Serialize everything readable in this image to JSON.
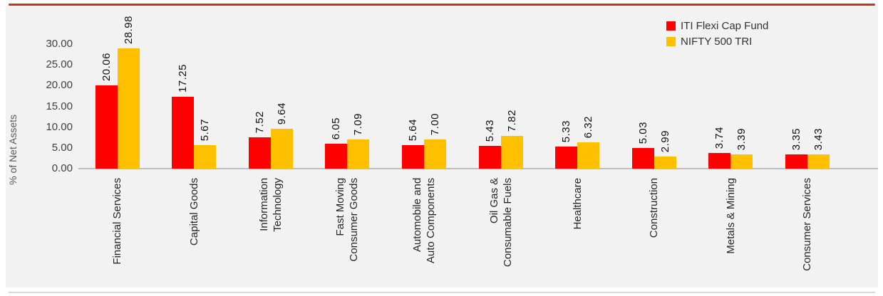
{
  "page": {
    "accent_line_color": "#C5351F",
    "panel_bg": "#F2F2F2",
    "axis_line_color": "#BFBFBF"
  },
  "legend": {
    "items": [
      {
        "label": "ITI Flexi Cap Fund",
        "color": "#FE0000"
      },
      {
        "label": "NIFTY 500 TRI",
        "color": "#FFC000"
      }
    ]
  },
  "chart_data": {
    "type": "bar",
    "title": "",
    "xlabel": "",
    "ylabel": "% of Net Assets",
    "ylim": [
      0,
      30
    ],
    "ytick_step": 5,
    "ytick_format": "two-decimals",
    "grid": false,
    "legend_position": "top-right",
    "value_labels": "rotated-90-above-bars",
    "category_labels": "rotated-90-below-axis",
    "categories": [
      "Financial Services",
      "Capital Goods",
      "Information\nTechnology",
      "Fast Moving\nConsumer Goods",
      "Automobile and\nAuto Components",
      "Oil Gas &\nConsumable Fuels",
      "Healthcare",
      "Construction",
      "Metals & Mining",
      "Consumer Services"
    ],
    "series": [
      {
        "name": "ITI Flexi Cap Fund",
        "color": "#FE0000",
        "values": [
          20.06,
          17.25,
          7.52,
          6.05,
          5.64,
          5.43,
          5.33,
          5.03,
          3.74,
          3.35
        ]
      },
      {
        "name": "NIFTY 500 TRI",
        "color": "#FFC000",
        "values": [
          28.98,
          5.67,
          9.64,
          7.09,
          7.0,
          7.82,
          6.32,
          2.99,
          3.39,
          3.43
        ]
      }
    ]
  }
}
